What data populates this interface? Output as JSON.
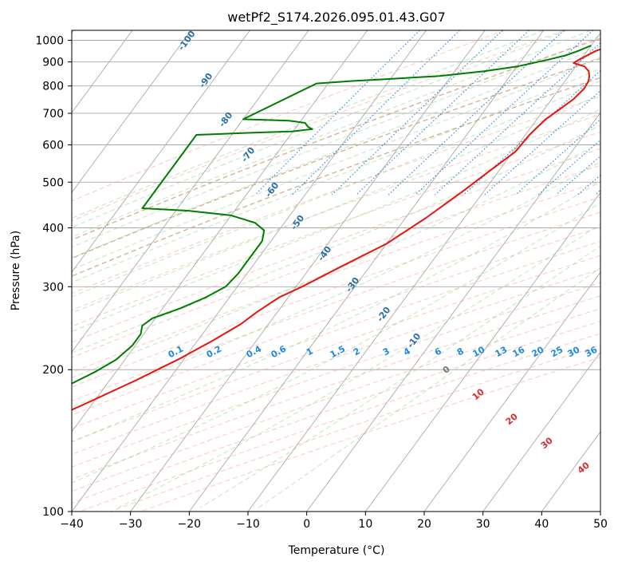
{
  "chart_data": {
    "type": "line",
    "title": "wetPf2_S174.2026.095.01.43.G07",
    "xlabel": "Temperature (°C)",
    "ylabel": "Pressure (hPa)",
    "xlim": [
      -40,
      50
    ],
    "ylim": [
      1050,
      100
    ],
    "y_scale": "log",
    "x_ticks": [
      -40,
      -30,
      -20,
      -10,
      0,
      10,
      20,
      30,
      40,
      50
    ],
    "y_ticks": [
      100,
      200,
      300,
      400,
      500,
      600,
      700,
      800,
      900,
      1000
    ],
    "grid": true,
    "series": [
      {
        "role": "temperature",
        "color": "#e8140c",
        "points": [
          {
            "p": 975,
            "t": -6.5
          },
          {
            "p": 950,
            "t": -8.5
          },
          {
            "p": 910,
            "t": -10.3
          },
          {
            "p": 895,
            "t": -10.8
          },
          {
            "p": 880,
            "t": -8.5
          },
          {
            "p": 860,
            "t": -7.2
          },
          {
            "p": 840,
            "t": -6.5
          },
          {
            "p": 820,
            "t": -6.0
          },
          {
            "p": 790,
            "t": -5.8
          },
          {
            "p": 750,
            "t": -6.3
          },
          {
            "p": 710,
            "t": -7.5
          },
          {
            "p": 680,
            "t": -8.5
          },
          {
            "p": 630,
            "t": -9.3
          },
          {
            "p": 580,
            "t": -9.6
          },
          {
            "p": 530,
            "t": -11.5
          },
          {
            "p": 480,
            "t": -13.5
          },
          {
            "p": 420,
            "t": -16.5
          },
          {
            "p": 370,
            "t": -20.0
          },
          {
            "p": 330,
            "t": -25.0
          },
          {
            "p": 300,
            "t": -29.0
          },
          {
            "p": 285,
            "t": -31.5
          },
          {
            "p": 275,
            "t": -32.5
          },
          {
            "p": 265,
            "t": -33.5
          },
          {
            "p": 250,
            "t": -34.7
          },
          {
            "p": 230,
            "t": -37.5
          },
          {
            "p": 210,
            "t": -41.0
          },
          {
            "p": 190,
            "t": -45.5
          },
          {
            "p": 170,
            "t": -51.0
          },
          {
            "p": 150,
            "t": -57.5
          },
          {
            "p": 140,
            "t": -60.5
          },
          {
            "p": 125,
            "t": -66.5
          },
          {
            "p": 110,
            "t": -74.5
          },
          {
            "p": 100,
            "t": -80.5
          }
        ]
      },
      {
        "role": "dewpoint",
        "color": "#007d00",
        "points": [
          {
            "p": 975,
            "t": -10.0
          },
          {
            "p": 950,
            "t": -11.5
          },
          {
            "p": 930,
            "t": -13.0
          },
          {
            "p": 910,
            "t": -15.5
          },
          {
            "p": 880,
            "t": -20.0
          },
          {
            "p": 860,
            "t": -25.0
          },
          {
            "p": 840,
            "t": -32.0
          },
          {
            "p": 825,
            "t": -42.0
          },
          {
            "p": 820,
            "t": -46.0
          },
          {
            "p": 810,
            "t": -52.0
          },
          {
            "p": 680,
            "t": -60.0
          },
          {
            "p": 675,
            "t": -52.0
          },
          {
            "p": 668,
            "t": -49.0
          },
          {
            "p": 655,
            "t": -48.0
          },
          {
            "p": 648,
            "t": -47.0
          },
          {
            "p": 641,
            "t": -50.0
          },
          {
            "p": 636,
            "t": -58.0
          },
          {
            "p": 630,
            "t": -66.0
          },
          {
            "p": 440,
            "t": -66.0
          },
          {
            "p": 435,
            "t": -58.0
          },
          {
            "p": 425,
            "t": -50.0
          },
          {
            "p": 410,
            "t": -45.0
          },
          {
            "p": 395,
            "t": -42.5
          },
          {
            "p": 375,
            "t": -41.5
          },
          {
            "p": 345,
            "t": -41.5
          },
          {
            "p": 320,
            "t": -41.5
          },
          {
            "p": 300,
            "t": -42.0
          },
          {
            "p": 285,
            "t": -44.0
          },
          {
            "p": 270,
            "t": -47.0
          },
          {
            "p": 257,
            "t": -50.5
          },
          {
            "p": 248,
            "t": -51.3
          },
          {
            "p": 238,
            "t": -50.5
          },
          {
            "p": 225,
            "t": -50.5
          },
          {
            "p": 210,
            "t": -51.5
          },
          {
            "p": 198,
            "t": -53.5
          },
          {
            "p": 185,
            "t": -56.5
          },
          {
            "p": 172,
            "t": -57.5
          },
          {
            "p": 160,
            "t": -57.5
          },
          {
            "p": 145,
            "t": -61.5
          },
          {
            "p": 130,
            "t": -66.5
          },
          {
            "p": 118,
            "t": -70.0
          },
          {
            "p": 110,
            "t": -74.0
          },
          {
            "p": 104,
            "t": -77.5
          },
          {
            "p": 100,
            "t": -80.5
          }
        ]
      }
    ],
    "isotherm_labels": [
      "-100",
      "-90",
      "-80",
      "-70",
      "-60",
      "-50",
      "-40",
      "-30",
      "-20",
      "-10"
    ],
    "mixing_ratio_labels": [
      "0.1",
      "0.2",
      "0.4",
      "0.6",
      "1",
      "1.5",
      "2",
      "3",
      "4",
      "6",
      "8",
      "10",
      "13",
      "16",
      "20",
      "25",
      "30",
      "36"
    ],
    "moist_adiabat_labels": [
      "0",
      "10",
      "20",
      "30",
      "40"
    ],
    "colors": {
      "isotherm": "#2a6fa8",
      "mixing_ratio": "#1e88e5",
      "moist_adiabat_label": "#d32f2f",
      "moist_adiabat_zero": "#777777",
      "dry_adiabat": "#ff9b80",
      "moist_adiabat": "#7cc47c",
      "grid": "#aaaaaa"
    }
  }
}
